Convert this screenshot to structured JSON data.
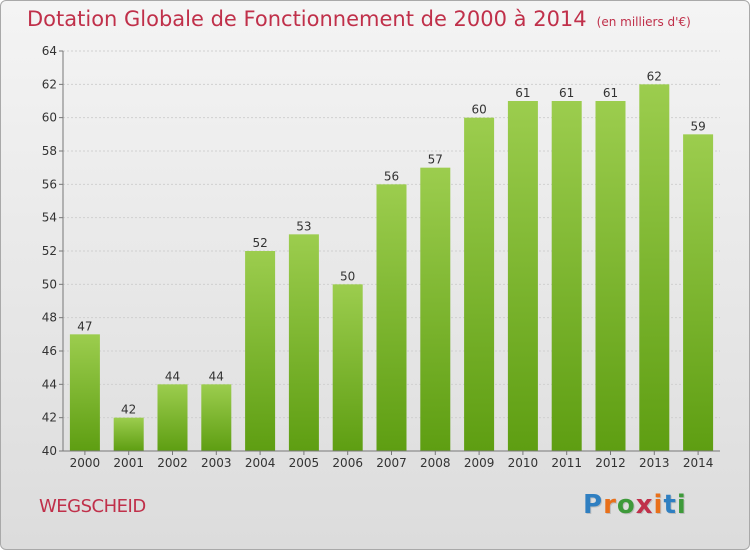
{
  "title": "Dotation Globale de Fonctionnement de 2000 à 2014",
  "subtitle": "(en milliers d'€)",
  "place": "WEGSCHEID",
  "logo": {
    "text": "Proxiti",
    "letter_colors": [
      "#2f7fc1",
      "#e8701a",
      "#3e9a3a",
      "#c0304a",
      "#e8701a",
      "#2f7fc1",
      "#3e9a3a"
    ]
  },
  "colors": {
    "title": "#c0304a",
    "bar_top": "#9ccd4e",
    "bar_bottom": "#5e9e12",
    "grid": "#d0d0d0",
    "axis_text": "#333333"
  },
  "chart_data": {
    "type": "bar",
    "categories": [
      "2000",
      "2001",
      "2002",
      "2003",
      "2004",
      "2005",
      "2006",
      "2007",
      "2008",
      "2009",
      "2010",
      "2011",
      "2012",
      "2013",
      "2014"
    ],
    "values": [
      47,
      42,
      44,
      44,
      52,
      53,
      50,
      56,
      57,
      60,
      61,
      61,
      61,
      62,
      59
    ],
    "ylim": [
      40,
      64
    ],
    "yticks": [
      40,
      42,
      44,
      46,
      48,
      50,
      52,
      54,
      56,
      58,
      60,
      62,
      64
    ],
    "grid": true
  }
}
